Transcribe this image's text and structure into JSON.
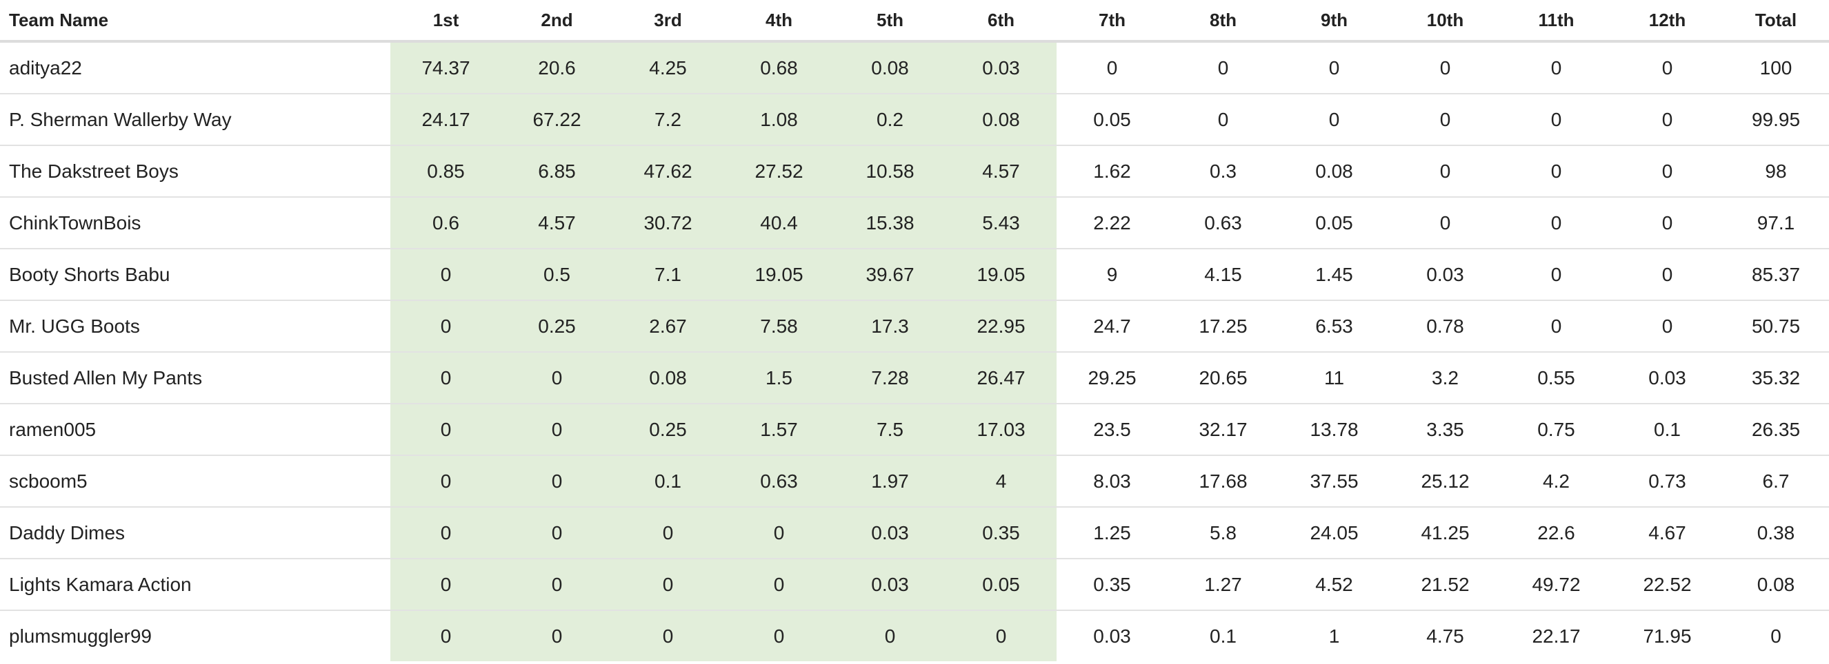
{
  "table": {
    "columns": [
      "Team Name",
      "1st",
      "2nd",
      "3rd",
      "4th",
      "5th",
      "6th",
      "7th",
      "8th",
      "9th",
      "10th",
      "11th",
      "12th",
      "Total"
    ],
    "highlight_color": "#e2eeda",
    "highlighted_columns": [
      "1st",
      "2nd",
      "3rd",
      "4th",
      "5th",
      "6th"
    ],
    "rows": [
      {
        "team": "aditya22",
        "values": [
          "74.37",
          "20.6",
          "4.25",
          "0.68",
          "0.08",
          "0.03",
          "0",
          "0",
          "0",
          "0",
          "0",
          "0",
          "100"
        ]
      },
      {
        "team": "P. Sherman Wallerby Way",
        "values": [
          "24.17",
          "67.22",
          "7.2",
          "1.08",
          "0.2",
          "0.08",
          "0.05",
          "0",
          "0",
          "0",
          "0",
          "0",
          "99.95"
        ]
      },
      {
        "team": "The Dakstreet Boys",
        "values": [
          "0.85",
          "6.85",
          "47.62",
          "27.52",
          "10.58",
          "4.57",
          "1.62",
          "0.3",
          "0.08",
          "0",
          "0",
          "0",
          "98"
        ]
      },
      {
        "team": "ChinkTownBois",
        "values": [
          "0.6",
          "4.57",
          "30.72",
          "40.4",
          "15.38",
          "5.43",
          "2.22",
          "0.63",
          "0.05",
          "0",
          "0",
          "0",
          "97.1"
        ]
      },
      {
        "team": "Booty Shorts Babu",
        "values": [
          "0",
          "0.5",
          "7.1",
          "19.05",
          "39.67",
          "19.05",
          "9",
          "4.15",
          "1.45",
          "0.03",
          "0",
          "0",
          "85.37"
        ]
      },
      {
        "team": "Mr. UGG Boots",
        "values": [
          "0",
          "0.25",
          "2.67",
          "7.58",
          "17.3",
          "22.95",
          "24.7",
          "17.25",
          "6.53",
          "0.78",
          "0",
          "0",
          "50.75"
        ]
      },
      {
        "team": "Busted Allen My Pants",
        "values": [
          "0",
          "0",
          "0.08",
          "1.5",
          "7.28",
          "26.47",
          "29.25",
          "20.65",
          "11",
          "3.2",
          "0.55",
          "0.03",
          "35.32"
        ]
      },
      {
        "team": "ramen005",
        "values": [
          "0",
          "0",
          "0.25",
          "1.57",
          "7.5",
          "17.03",
          "23.5",
          "32.17",
          "13.78",
          "3.35",
          "0.75",
          "0.1",
          "26.35"
        ]
      },
      {
        "team": "scboom5",
        "values": [
          "0",
          "0",
          "0.1",
          "0.63",
          "1.97",
          "4",
          "8.03",
          "17.68",
          "37.55",
          "25.12",
          "4.2",
          "0.73",
          "6.7"
        ]
      },
      {
        "team": "Daddy Dimes",
        "values": [
          "0",
          "0",
          "0",
          "0",
          "0.03",
          "0.35",
          "1.25",
          "5.8",
          "24.05",
          "41.25",
          "22.6",
          "4.67",
          "0.38"
        ]
      },
      {
        "team": "Lights Kamara Action",
        "values": [
          "0",
          "0",
          "0",
          "0",
          "0.03",
          "0.05",
          "0.35",
          "1.27",
          "4.52",
          "21.52",
          "49.72",
          "22.52",
          "0.08"
        ]
      },
      {
        "team": "plumsmuggler99",
        "values": [
          "0",
          "0",
          "0",
          "0",
          "0",
          "0",
          "0.03",
          "0.1",
          "1",
          "4.75",
          "22.17",
          "71.95",
          "0"
        ]
      }
    ]
  }
}
